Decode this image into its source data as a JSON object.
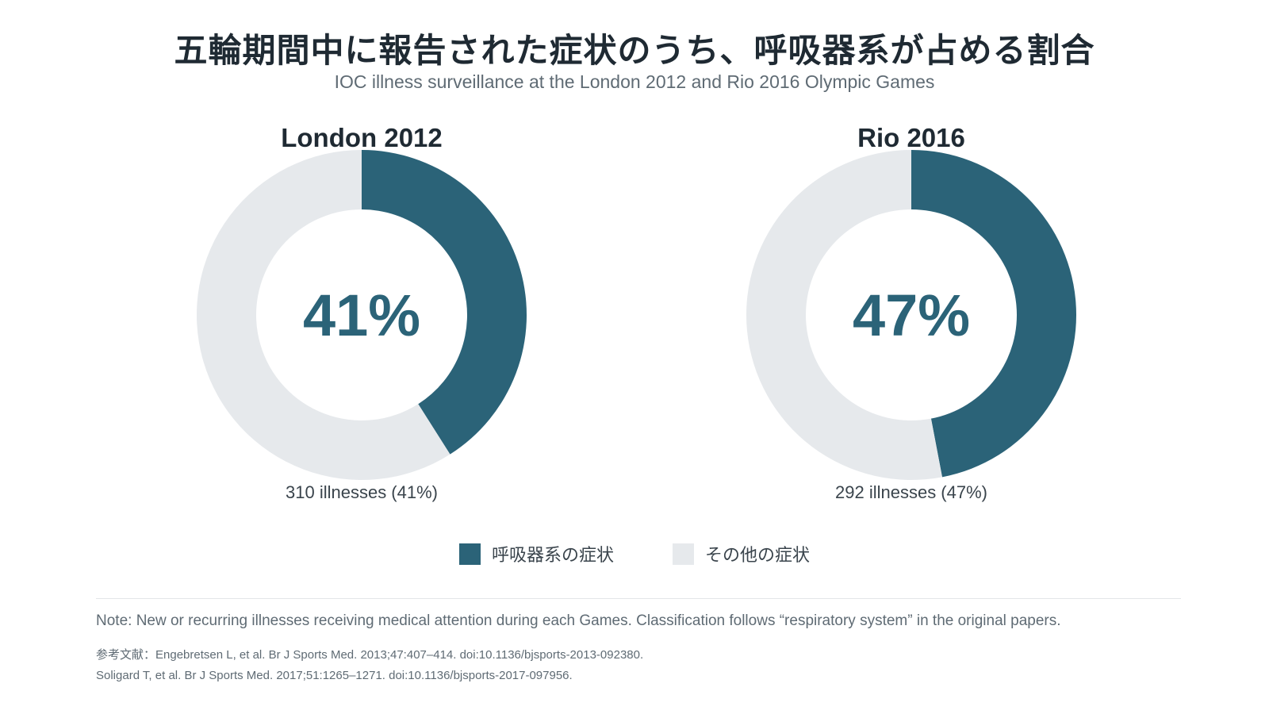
{
  "title": "五輪期間中に報告された症状のうち、呼吸器系が占める割合",
  "subtitle": "IOC illness surveillance at the London 2012 and Rio 2016 Olympic Games",
  "colors": {
    "respiratory": "#2b6378",
    "other": "#e6e9ec"
  },
  "chart_data": [
    {
      "type": "pie",
      "donut": true,
      "title": "London 2012",
      "categories": [
        "呼吸器系の症状",
        "その他の症状"
      ],
      "values": [
        41,
        59
      ],
      "center_label": "41%",
      "count_label": "310 illnesses (41%)"
    },
    {
      "type": "pie",
      "donut": true,
      "title": "Rio 2016",
      "categories": [
        "呼吸器系の症状",
        "その他の症状"
      ],
      "values": [
        47,
        53
      ],
      "center_label": "47%",
      "count_label": "292 illnesses (47%)"
    }
  ],
  "legend": {
    "items": [
      "呼吸器系の症状",
      "その他の症状"
    ]
  },
  "note": "Note: New or recurring illnesses receiving medical attention during each Games. Classification follows “respiratory system” in the original papers.",
  "references": [
    "参考文献：Engebretsen L, et al. Br J Sports Med. 2013;47:407–414. doi:10.1136/bjsports-2013-092380.",
    "Soligard T, et al. Br J Sports Med. 2017;51:1265–1271. doi:10.1136/bjsports-2017-097956."
  ]
}
